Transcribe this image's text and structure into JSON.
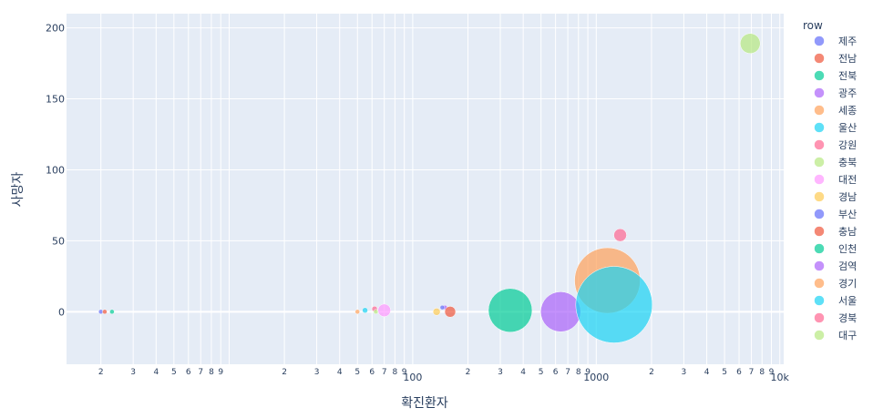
{
  "chart_data": {
    "type": "scatter",
    "bubble": true,
    "xlabel": "확진환자",
    "ylabel": "사망자",
    "x_scale": "log",
    "xlim": [
      1.3,
      10500
    ],
    "ylim": [
      -37,
      210
    ],
    "y_ticks": [
      0,
      50,
      100,
      150,
      200
    ],
    "x_major_ticks": [
      "100",
      "1000",
      "10k"
    ],
    "x_minor_digits": [
      "2",
      "3",
      "4",
      "5",
      "6",
      "7",
      "8",
      "9"
    ],
    "grid": true,
    "legend_title": "row",
    "legend_position": "right",
    "series": [
      {
        "name": "제주",
        "color": "#636efa",
        "points": [
          {
            "x": 2,
            "y": 0,
            "size": 2
          }
        ]
      },
      {
        "name": "전남",
        "color": "#ef553b",
        "points": [
          {
            "x": 2.1,
            "y": 0,
            "size": 1
          }
        ]
      },
      {
        "name": "전북",
        "color": "#00cc96",
        "points": [
          {
            "x": 2.3,
            "y": 0,
            "size": 1
          }
        ]
      },
      {
        "name": "광주",
        "color": "#ab63fa",
        "points": [
          {
            "x": 150,
            "y": 3,
            "size": 2
          }
        ]
      },
      {
        "name": "세종",
        "color": "#ffa15a",
        "points": [
          {
            "x": 50,
            "y": 0,
            "size": 1
          }
        ]
      },
      {
        "name": "울산",
        "color": "#19d3f3",
        "points": [
          {
            "x": 55,
            "y": 1,
            "size": 3
          }
        ]
      },
      {
        "name": "강원",
        "color": "#ff6692",
        "points": [
          {
            "x": 62,
            "y": 2,
            "size": 3
          }
        ]
      },
      {
        "name": "충북",
        "color": "#b6e880",
        "points": [
          {
            "x": 63,
            "y": 0,
            "size": 2
          }
        ]
      },
      {
        "name": "대전",
        "color": "#ff97ff",
        "points": [
          {
            "x": 70,
            "y": 1,
            "size": 7
          }
        ]
      },
      {
        "name": "경남",
        "color": "#fecb52",
        "points": [
          {
            "x": 135,
            "y": 0,
            "size": 4
          }
        ]
      },
      {
        "name": "부산",
        "color": "#636efa",
        "points": [
          {
            "x": 145,
            "y": 3,
            "size": 1
          }
        ]
      },
      {
        "name": "충남",
        "color": "#ef553b",
        "points": [
          {
            "x": 160,
            "y": 0,
            "size": 6
          }
        ]
      },
      {
        "name": "인천",
        "color": "#00cc96",
        "points": [
          {
            "x": 340,
            "y": 1,
            "size": 24
          }
        ]
      },
      {
        "name": "검역",
        "color": "#ab63fa",
        "points": [
          {
            "x": 640,
            "y": 0,
            "size": 22
          }
        ]
      },
      {
        "name": "경기",
        "color": "#ffa15a",
        "points": [
          {
            "x": 1150,
            "y": 22,
            "size": 36
          }
        ]
      },
      {
        "name": "서울",
        "color": "#19d3f3",
        "points": [
          {
            "x": 1250,
            "y": 5,
            "size": 42
          }
        ]
      },
      {
        "name": "경북",
        "color": "#ff6692",
        "points": [
          {
            "x": 1350,
            "y": 54,
            "size": 7
          }
        ]
      },
      {
        "name": "대구",
        "color": "#b6e880",
        "points": [
          {
            "x": 6900,
            "y": 189,
            "size": 11
          }
        ]
      }
    ]
  }
}
